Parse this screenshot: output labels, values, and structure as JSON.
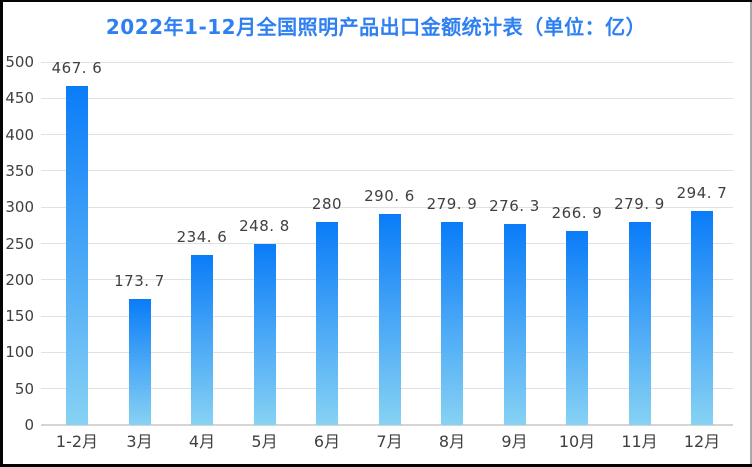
{
  "chart_data": {
    "type": "bar",
    "title": "2022年1-12月全国照明产品出口金额统计表（单位：亿）",
    "categories": [
      "1-2月",
      "3月",
      "4月",
      "5月",
      "6月",
      "7月",
      "8月",
      "9月",
      "10月",
      "11月",
      "12月"
    ],
    "values": [
      467.6,
      173.7,
      234.6,
      248.8,
      280,
      290.6,
      279.9,
      276.3,
      266.9,
      279.9,
      294.7
    ],
    "value_labels": [
      "467. 6",
      "173. 7",
      "234. 6",
      "248. 8",
      "280",
      "290. 6",
      "279. 9",
      "276. 3",
      "266. 9",
      "279. 9",
      "294. 7"
    ],
    "xlabel": "",
    "ylabel": "",
    "ylim": [
      0,
      500
    ],
    "ytick_step": 50,
    "yticks": [
      0,
      50,
      100,
      150,
      200,
      250,
      300,
      350,
      400,
      450,
      500
    ],
    "grid": true,
    "legend": null,
    "colors": {
      "title": "#2E80F2",
      "bar_gradient_top": "#0A7CF8",
      "bar_gradient_bottom": "#87D2F4",
      "gridline": "#E1E1E1",
      "axis_line": "#D5D5D5",
      "tick_label": "#404040",
      "frame_dark": "#050505",
      "frame_light": "#A9A9A9",
      "background": "#FFFFFF"
    }
  }
}
